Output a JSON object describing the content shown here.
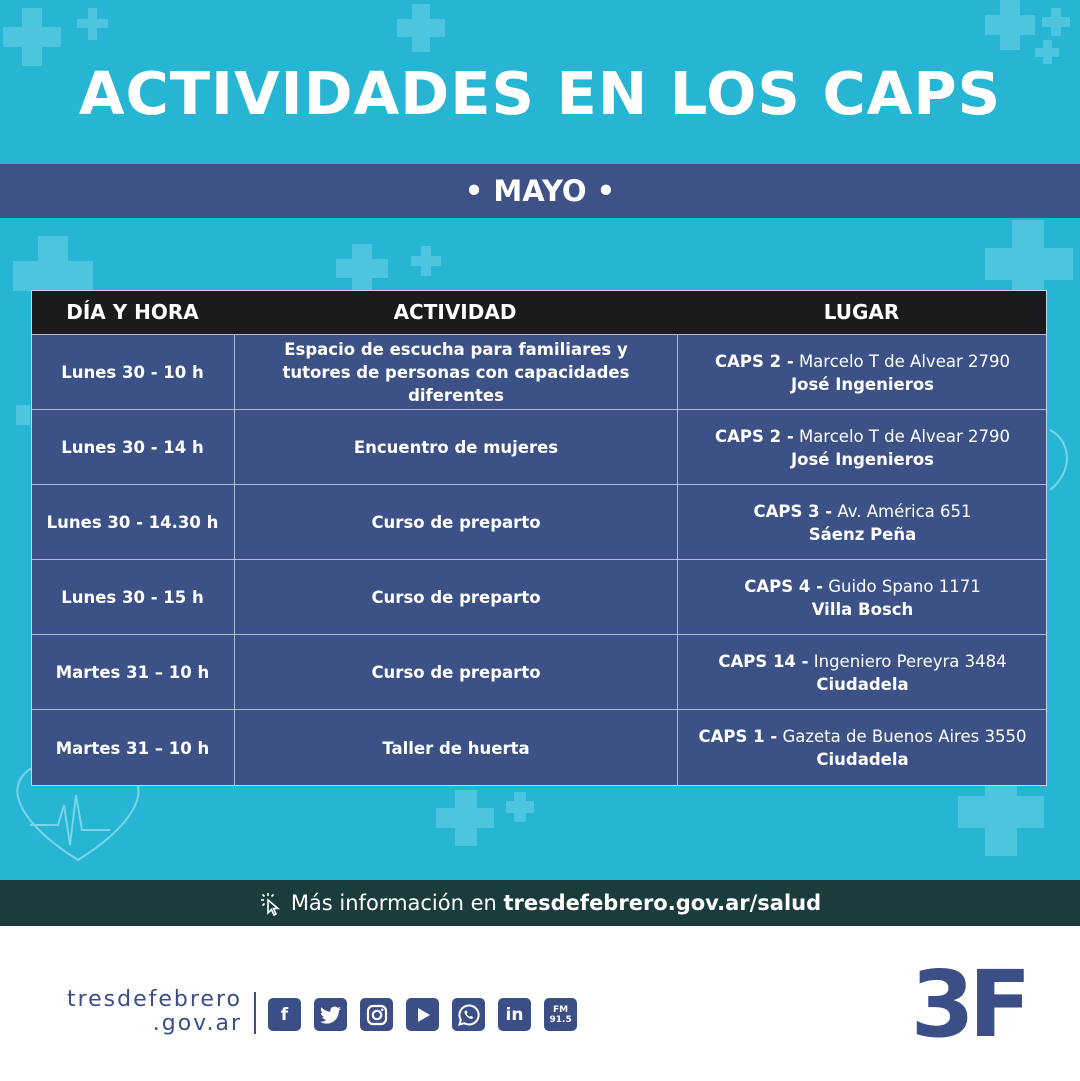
{
  "title": "ACTIVIDADES EN LOS CAPS",
  "month": "• MAYO •",
  "table": {
    "headers": [
      "DÍA Y HORA",
      "ACTIVIDAD",
      "LUGAR"
    ],
    "rows": [
      {
        "time": "Lunes 30 - 10 h",
        "activity_line1": "Espacio de escucha para familiares y",
        "activity_line2": "tutores de personas con capacidades diferentes",
        "caps": "CAPS 2 -",
        "address": " Marcelo T de Alvear 2790",
        "locality": "José Ingenieros"
      },
      {
        "time": "Lunes 30 - 14 h",
        "activity_line1": "Encuentro de mujeres",
        "activity_line2": "",
        "caps": "CAPS 2 -",
        "address": " Marcelo T de Alvear 2790",
        "locality": "José Ingenieros"
      },
      {
        "time": "Lunes 30 - 14.30 h",
        "activity_line1": "Curso de preparto",
        "activity_line2": "",
        "caps": "CAPS 3 -",
        "address": "  Av. América 651",
        "locality": "Sáenz Peña"
      },
      {
        "time": "Lunes 30 - 15 h",
        "activity_line1": "Curso de preparto",
        "activity_line2": "",
        "caps": "CAPS 4 -",
        "address": " Guido Spano 1171",
        "locality": "Villa Bosch"
      },
      {
        "time": "Martes 31 – 10 h",
        "activity_line1": "Curso de preparto",
        "activity_line2": "",
        "caps": "CAPS 14 -",
        "address": " Ingeniero Pereyra 3484",
        "locality": "Ciudadela"
      },
      {
        "time": "Martes 31 – 10 h",
        "activity_line1": "Taller de huerta",
        "activity_line2": "",
        "caps": "CAPS 1 -",
        "address": " Gazeta de Buenos Aires 3550",
        "locality": "Ciudadela"
      }
    ]
  },
  "info": {
    "prefix": "Más información en ",
    "link": "tresdefebrero.gov.ar/salud",
    "icon": "cursor-click-icon"
  },
  "footer": {
    "brand_line1": "tresdefebrero",
    "brand_line2": ".gov.ar",
    "social": [
      {
        "name": "facebook-icon",
        "glyph": "f"
      },
      {
        "name": "twitter-icon",
        "glyph": "t"
      },
      {
        "name": "instagram-icon",
        "glyph": "◎"
      },
      {
        "name": "youtube-icon",
        "glyph": "▶"
      },
      {
        "name": "whatsapp-icon",
        "glyph": "✆"
      },
      {
        "name": "linkedin-icon",
        "glyph": "in"
      },
      {
        "name": "fm-radio-icon",
        "glyph": "FM 91.5"
      }
    ],
    "logo": "3F"
  },
  "colors": {
    "sky": "#27b5d4",
    "navy": "#3c5287",
    "header_black": "#1b1a1c",
    "info_bar": "#1b3c3d",
    "brand": "#3b4f86"
  }
}
